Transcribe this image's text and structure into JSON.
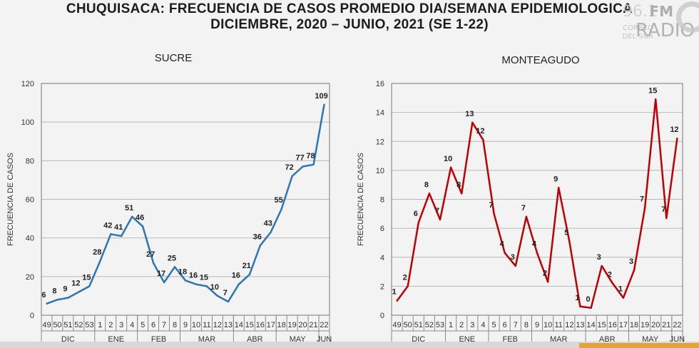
{
  "header": {
    "title_line1": "CHUQUISACA: FRECUENCIA DE CASOS PROMEDIO DIA/SEMANA EPIDEMIOLOGICA",
    "title_line2": "DICIEMBRE, 2020 – JUNIO, 2021 (SE 1-22)"
  },
  "logo": {
    "freq": "96.1",
    "fm": "FM",
    "line1": "CORREO",
    "line2": "DEL SUR",
    "radio": "RADIO"
  },
  "chart_data": [
    {
      "type": "line",
      "title": "SUCRE",
      "xlabel": "",
      "ylabel": "FRECUENCIA DE CASOS",
      "ylim": [
        0,
        120
      ],
      "yticks": [
        0,
        20,
        40,
        60,
        80,
        100,
        120
      ],
      "grid": "horizontal",
      "color": "#2e75b6",
      "categories": [
        "49",
        "50",
        "51",
        "52",
        "53",
        "1",
        "2",
        "3",
        "4",
        "5",
        "6",
        "7",
        "8",
        "9",
        "10",
        "11",
        "12",
        "13",
        "14",
        "15",
        "16",
        "17",
        "18",
        "19",
        "20",
        "21",
        "22"
      ],
      "values": [
        6,
        8,
        9,
        12,
        15,
        28,
        42,
        41,
        51,
        46,
        27,
        17,
        25,
        18,
        16,
        15,
        10,
        7,
        16,
        21,
        36,
        43,
        55,
        72,
        77,
        78,
        109
      ],
      "data_labels": [
        "6",
        "8",
        "9",
        "12",
        "15",
        "28",
        "42",
        "41",
        "51",
        "46",
        "27",
        "17",
        "25",
        "18",
        "16",
        "15",
        "10",
        "7",
        "16",
        "21",
        "36",
        "43",
        "55",
        "72",
        "77",
        "78",
        "109"
      ],
      "month_groups": [
        {
          "label": "DIC",
          "count": 5
        },
        {
          "label": "ENE",
          "count": 4
        },
        {
          "label": "FEB",
          "count": 4
        },
        {
          "label": "MAR",
          "count": 5
        },
        {
          "label": "ABR",
          "count": 4
        },
        {
          "label": "MAY",
          "count": 4
        },
        {
          "label": "JUN",
          "count": 1
        }
      ]
    },
    {
      "type": "line",
      "title": "MONTEAGUDO",
      "xlabel": "",
      "ylabel": "FRECUENCIA DE CASOS",
      "ylim": [
        0,
        16
      ],
      "yticks": [
        0,
        2,
        4,
        6,
        8,
        10,
        12,
        14,
        16
      ],
      "grid": "horizontal",
      "color": "#c00000",
      "categories": [
        "49",
        "50",
        "51",
        "52",
        "53",
        "1",
        "2",
        "3",
        "4",
        "5",
        "6",
        "7",
        "8",
        "9",
        "10",
        "11",
        "12",
        "13",
        "14",
        "15",
        "16",
        "17",
        "18",
        "19",
        "20",
        "21",
        "22"
      ],
      "values": [
        1,
        2,
        6.4,
        8.4,
        6.6,
        10.2,
        8.4,
        13.3,
        12.1,
        7,
        4.3,
        3.4,
        6.8,
        4.3,
        2.3,
        8.8,
        5.1,
        0.6,
        0.5,
        3.4,
        2.2,
        1.2,
        3.1,
        7.4,
        14.9,
        6.7,
        12.2
      ],
      "data_labels": [
        "1",
        "2",
        "6",
        "8",
        "7",
        "10",
        "8",
        "13",
        "12",
        "7",
        "4",
        "3",
        "7",
        "4",
        "2",
        "9",
        "5",
        "1",
        "0",
        "3",
        "2",
        "1",
        "3",
        "7",
        "15",
        "7",
        "12"
      ],
      "month_groups": [
        {
          "label": "DIC",
          "count": 5
        },
        {
          "label": "ENE",
          "count": 4
        },
        {
          "label": "FEB",
          "count": 4
        },
        {
          "label": "MAR",
          "count": 5
        },
        {
          "label": "ABR",
          "count": 4
        },
        {
          "label": "MAY",
          "count": 4
        },
        {
          "label": "JUN",
          "count": 1
        }
      ]
    }
  ]
}
